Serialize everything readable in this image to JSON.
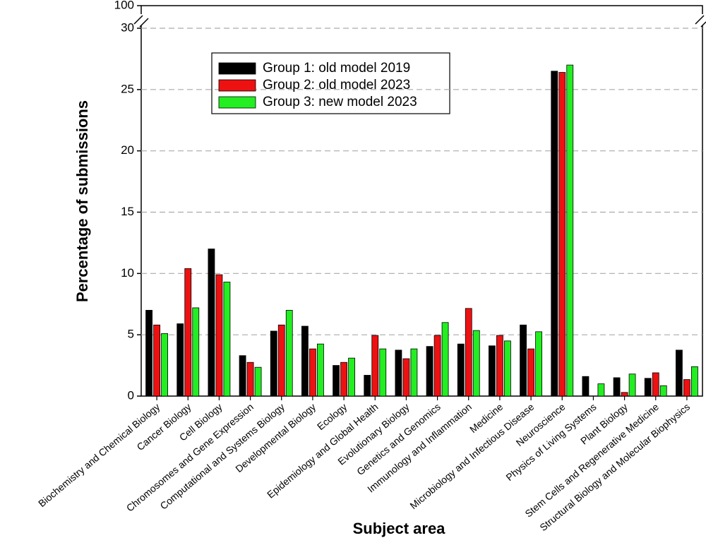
{
  "chart_data": {
    "type": "bar",
    "y_label": "Percentage of submissions",
    "x_label": "Subject area",
    "categories": [
      "Biochemistry and Chemical Biology",
      "Cancer Biology",
      "Cell Biology",
      "Chromosomes and Gene Expression",
      "Computational and Systems Biology",
      "Developmental Biology",
      "Ecology",
      "Epidemiology and Global Health",
      "Evolutionary Biology",
      "Genetics and Genomics",
      "Immunology and Inflammation",
      "Medicine",
      "Microbiology and Infectious Disease",
      "Neuroscience",
      "Physics of Living Systems",
      "Plant Biology",
      "Stem Cells and Regenerative Medicine",
      "Structural Biology and Molecular Biophysics"
    ],
    "series": [
      {
        "name": "Group 1: old model 2019",
        "color": "#000000",
        "values": [
          7.0,
          5.9,
          12.0,
          3.3,
          5.3,
          5.7,
          2.5,
          1.7,
          3.75,
          4.05,
          4.25,
          4.1,
          5.8,
          26.5,
          1.6,
          1.5,
          1.45,
          3.75
        ]
      },
      {
        "name": "Group 2: old model 2023",
        "color": "#ee1111",
        "values": [
          5.8,
          10.4,
          9.9,
          2.75,
          5.8,
          3.85,
          2.75,
          4.95,
          3.05,
          4.95,
          7.15,
          4.95,
          3.85,
          26.4,
          0,
          0.3,
          1.9,
          1.35
        ]
      },
      {
        "name": "Group 3: new model 2023",
        "color": "#22ee22",
        "values": [
          5.1,
          7.2,
          9.3,
          2.35,
          7.0,
          4.25,
          3.1,
          3.85,
          3.85,
          6.0,
          5.35,
          4.5,
          5.25,
          27.0,
          1.0,
          1.8,
          0.85,
          2.4
        ]
      }
    ],
    "ylim": [
      0,
      100
    ],
    "yticks": [
      0,
      5,
      10,
      15,
      20,
      25,
      30,
      100
    ],
    "y_break": [
      30,
      100
    ],
    "grid": true,
    "legend": "upper left"
  }
}
